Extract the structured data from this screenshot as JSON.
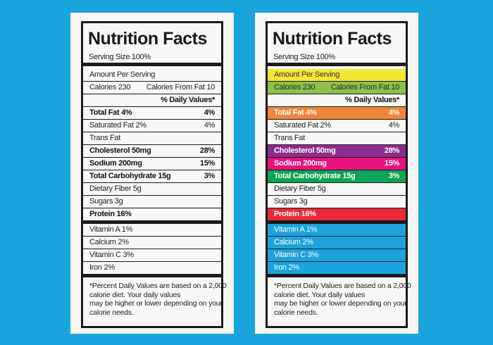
{
  "colors": {
    "background": "#1ba3dc",
    "card": "#f7f7f5",
    "ink": "#1a1a1a"
  },
  "labels": [
    {
      "id": "plain",
      "title": "Nutrition Facts",
      "serving": "Serving Size 100%",
      "rows": [
        {
          "left": "Amount Per Serving",
          "right": ""
        },
        {
          "left": "Calories 230",
          "right": "Calories From Fat 10"
        },
        {
          "left": "",
          "right": "% Daily Values*",
          "bold": true
        },
        {
          "left": "Total Fat 4%",
          "right": "4%",
          "bold": true
        },
        {
          "left": "Saturated Fat 2%",
          "right": "4%"
        },
        {
          "left": "Trans Fat",
          "right": ""
        },
        {
          "left": "Cholesterol 50mg",
          "right": "28%",
          "bold": true
        },
        {
          "left": "Sodium 200mg",
          "right": "15%",
          "bold": true
        },
        {
          "left": "Total Carbohydrate 15g",
          "right": "3%",
          "bold": true
        },
        {
          "left": "Dietary Fiber 5g",
          "right": ""
        },
        {
          "left": "Sugars 3g",
          "right": ""
        },
        {
          "left": "Protein 16%",
          "right": "",
          "bold": true
        }
      ],
      "vitamins": [
        {
          "left": "Vitamin A 1%"
        },
        {
          "left": "Calcium 2%"
        },
        {
          "left": "Vitamin C 3%"
        },
        {
          "left": "Iron 2%"
        }
      ],
      "footnote": [
        "*Percent Daily Values are based on a 2,000",
        "calorie diet. Your daily values",
        "may be higher or lower depending on your",
        "calorie needs."
      ]
    },
    {
      "id": "colored",
      "title": "Nutrition Facts",
      "serving": "Serving Size 100%",
      "rows": [
        {
          "left": "Amount Per Serving",
          "right": "",
          "fill": "#f5e535",
          "text": "#333333"
        },
        {
          "left": "Calories 230",
          "right": "Calories From Fat 10",
          "fill": "#8cc04b",
          "text": "#2a2a2a"
        },
        {
          "left": "",
          "right": "% Daily Values*",
          "bold": true
        },
        {
          "left": "Total Fat 4%",
          "right": "4%",
          "bold": true,
          "fill": "#f08636",
          "text": "#ffffff"
        },
        {
          "left": "Saturated Fat 2%",
          "right": "4%"
        },
        {
          "left": "Trans Fat",
          "right": ""
        },
        {
          "left": "Cholesterol 50mg",
          "right": "28%",
          "bold": true,
          "fill": "#8e2b8f",
          "text": "#ffffff"
        },
        {
          "left": "Sodium 200mg",
          "right": "15%",
          "bold": true,
          "fill": "#e8137e",
          "text": "#ffffff"
        },
        {
          "left": "Total Carbohydrate 15g",
          "right": "3%",
          "bold": true,
          "fill": "#0ea356",
          "text": "#ffffff"
        },
        {
          "left": "Dietary Fiber 5g",
          "right": ""
        },
        {
          "left": "Sugars 3g",
          "right": ""
        },
        {
          "left": "Protein 16%",
          "right": "",
          "bold": true,
          "fill": "#e8293b",
          "text": "#ffffff"
        }
      ],
      "vitamins": [
        {
          "left": "Vitamin A 1%",
          "fill": "#1ba3dc",
          "text": "#ffffff"
        },
        {
          "left": "Calcium 2%",
          "fill": "#1ba3dc",
          "text": "#ffffff"
        },
        {
          "left": "Vitamin C 3%",
          "fill": "#1ba3dc",
          "text": "#ffffff"
        },
        {
          "left": "Iron 2%",
          "fill": "#1ba3dc",
          "text": "#ffffff"
        }
      ],
      "footnote": [
        "*Percent Daily Values are based on a 2,000",
        "calorie diet. Your daily values",
        "may be higher or lower depending on your",
        "calorie needs."
      ]
    }
  ]
}
